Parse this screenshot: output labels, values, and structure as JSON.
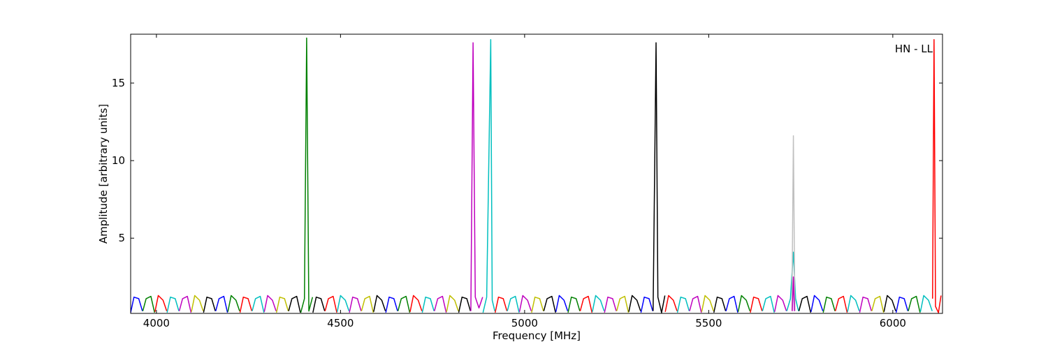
{
  "chart_data": {
    "type": "line",
    "xlabel": "Frequency [MHz]",
    "ylabel": "Amplitude [arbitrary units]",
    "annotation": "HN - LL",
    "xlim": [
      3930,
      6135
    ],
    "ylim": [
      0.15,
      18.15
    ],
    "xticks": [
      4000,
      4500,
      5000,
      5500,
      6000
    ],
    "yticks": [
      5,
      10,
      15
    ],
    "series": [
      {
        "color": "#0000ff",
        "x": [
          3930,
          3939,
          3952,
          3962
        ],
        "values": [
          0.2,
          1.2,
          1.1,
          0.3
        ]
      },
      {
        "color": "#008000",
        "x": [
          3963,
          3972,
          3985,
          3995
        ],
        "values": [
          0.3,
          1.1,
          1.25,
          0.2
        ]
      },
      {
        "color": "#ff0000",
        "x": [
          3996,
          4005,
          4018,
          4028
        ],
        "values": [
          0.25,
          1.3,
          1.0,
          0.3
        ]
      },
      {
        "color": "#00bfbf",
        "x": [
          4029,
          4038,
          4051,
          4061
        ],
        "values": [
          0.2,
          1.2,
          1.1,
          0.3
        ]
      },
      {
        "color": "#bf00bf",
        "x": [
          4062,
          4071,
          4084,
          4094
        ],
        "values": [
          0.3,
          1.1,
          1.25,
          0.2
        ]
      },
      {
        "color": "#bfbf00",
        "x": [
          4095,
          4104,
          4117,
          4127
        ],
        "values": [
          0.25,
          1.3,
          1.0,
          0.3
        ]
      },
      {
        "color": "#000000",
        "x": [
          4128,
          4137,
          4150,
          4160
        ],
        "values": [
          0.2,
          1.2,
          1.1,
          0.3
        ]
      },
      {
        "color": "#0000ff",
        "x": [
          4161,
          4170,
          4183,
          4193
        ],
        "values": [
          0.3,
          1.1,
          1.25,
          0.2
        ]
      },
      {
        "color": "#008000",
        "x": [
          4194,
          4203,
          4216,
          4226
        ],
        "values": [
          0.25,
          1.3,
          1.0,
          0.3
        ]
      },
      {
        "color": "#ff0000",
        "x": [
          4227,
          4236,
          4249,
          4259
        ],
        "values": [
          0.2,
          1.2,
          1.1,
          0.3
        ]
      },
      {
        "color": "#00bfbf",
        "x": [
          4260,
          4269,
          4282,
          4292
        ],
        "values": [
          0.3,
          1.1,
          1.25,
          0.2
        ]
      },
      {
        "color": "#bf00bf",
        "x": [
          4293,
          4302,
          4315,
          4325
        ],
        "values": [
          0.25,
          1.3,
          1.0,
          0.3
        ]
      },
      {
        "color": "#bfbf00",
        "x": [
          4326,
          4335,
          4348,
          4358
        ],
        "values": [
          0.2,
          1.2,
          1.1,
          0.3
        ]
      },
      {
        "color": "#000000",
        "x": [
          4359,
          4368,
          4381,
          4391
        ],
        "values": [
          0.3,
          1.1,
          1.25,
          0.2
        ]
      },
      {
        "color": "#008000",
        "x": [
          4392,
          4402,
          4408,
          4414,
          4424
        ],
        "values": [
          0.2,
          1.1,
          17.9,
          0.3,
          1.2
        ]
      },
      {
        "color": "#000000",
        "x": [
          4425,
          4434,
          4447,
          4457
        ],
        "values": [
          0.2,
          1.2,
          1.1,
          0.3
        ]
      },
      {
        "color": "#ff0000",
        "x": [
          4458,
          4467,
          4480,
          4490
        ],
        "values": [
          0.3,
          1.1,
          1.25,
          0.2
        ]
      },
      {
        "color": "#00bfbf",
        "x": [
          4491,
          4500,
          4513,
          4523
        ],
        "values": [
          0.25,
          1.3,
          1.0,
          0.3
        ]
      },
      {
        "color": "#bf00bf",
        "x": [
          4524,
          4533,
          4546,
          4556
        ],
        "values": [
          0.2,
          1.2,
          1.1,
          0.3
        ]
      },
      {
        "color": "#bfbf00",
        "x": [
          4557,
          4566,
          4579,
          4589
        ],
        "values": [
          0.3,
          1.1,
          1.25,
          0.2
        ]
      },
      {
        "color": "#000000",
        "x": [
          4590,
          4599,
          4612,
          4622
        ],
        "values": [
          0.25,
          1.3,
          1.0,
          0.3
        ]
      },
      {
        "color": "#0000ff",
        "x": [
          4623,
          4632,
          4645,
          4655
        ],
        "values": [
          0.2,
          1.2,
          1.1,
          0.3
        ]
      },
      {
        "color": "#008000",
        "x": [
          4656,
          4665,
          4678,
          4688
        ],
        "values": [
          0.3,
          1.1,
          1.25,
          0.2
        ]
      },
      {
        "color": "#ff0000",
        "x": [
          4689,
          4698,
          4711,
          4721
        ],
        "values": [
          0.25,
          1.3,
          1.0,
          0.3
        ]
      },
      {
        "color": "#00bfbf",
        "x": [
          4722,
          4731,
          4744,
          4754
        ],
        "values": [
          0.2,
          1.2,
          1.1,
          0.3
        ]
      },
      {
        "color": "#bf00bf",
        "x": [
          4755,
          4764,
          4777,
          4787
        ],
        "values": [
          0.3,
          1.1,
          1.25,
          0.2
        ]
      },
      {
        "color": "#bfbf00",
        "x": [
          4788,
          4797,
          4810,
          4820
        ],
        "values": [
          0.25,
          1.3,
          1.0,
          0.3
        ]
      },
      {
        "color": "#000000",
        "x": [
          4821,
          4830,
          4843,
          4853
        ],
        "values": [
          0.2,
          1.2,
          1.1,
          0.3
        ]
      },
      {
        "color": "#bf00bf",
        "x": [
          4854,
          4860,
          4866,
          4876,
          4886
        ],
        "values": [
          0.3,
          17.6,
          1.2,
          0.5,
          1.2
        ]
      },
      {
        "color": "#00bfbf",
        "x": [
          4887,
          4897,
          4908,
          4912,
          4919
        ],
        "values": [
          0.2,
          1.2,
          17.8,
          1.0,
          0.3
        ]
      },
      {
        "color": "#ff0000",
        "x": [
          4920,
          4929,
          4942,
          4952
        ],
        "values": [
          0.2,
          1.2,
          1.1,
          0.3
        ]
      },
      {
        "color": "#00bfbf",
        "x": [
          4953,
          4962,
          4975,
          4985
        ],
        "values": [
          0.3,
          1.1,
          1.25,
          0.2
        ]
      },
      {
        "color": "#bf00bf",
        "x": [
          4986,
          4995,
          5008,
          5018
        ],
        "values": [
          0.25,
          1.3,
          1.0,
          0.3
        ]
      },
      {
        "color": "#bfbf00",
        "x": [
          5019,
          5028,
          5041,
          5051
        ],
        "values": [
          0.2,
          1.2,
          1.1,
          0.3
        ]
      },
      {
        "color": "#000000",
        "x": [
          5052,
          5061,
          5074,
          5084
        ],
        "values": [
          0.3,
          1.1,
          1.25,
          0.2
        ]
      },
      {
        "color": "#0000ff",
        "x": [
          5085,
          5094,
          5107,
          5117
        ],
        "values": [
          0.25,
          1.3,
          1.0,
          0.3
        ]
      },
      {
        "color": "#008000",
        "x": [
          5118,
          5127,
          5140,
          5150
        ],
        "values": [
          0.2,
          1.2,
          1.1,
          0.3
        ]
      },
      {
        "color": "#ff0000",
        "x": [
          5151,
          5160,
          5173,
          5183
        ],
        "values": [
          0.3,
          1.1,
          1.25,
          0.2
        ]
      },
      {
        "color": "#00bfbf",
        "x": [
          5184,
          5193,
          5206,
          5216
        ],
        "values": [
          0.25,
          1.3,
          1.0,
          0.3
        ]
      },
      {
        "color": "#bf00bf",
        "x": [
          5217,
          5226,
          5239,
          5249
        ],
        "values": [
          0.2,
          1.2,
          1.1,
          0.3
        ]
      },
      {
        "color": "#bfbf00",
        "x": [
          5250,
          5259,
          5272,
          5282
        ],
        "values": [
          0.3,
          1.1,
          1.25,
          0.2
        ]
      },
      {
        "color": "#000000",
        "x": [
          5283,
          5292,
          5305,
          5315
        ],
        "values": [
          0.25,
          1.3,
          1.0,
          0.3
        ]
      },
      {
        "color": "#0000ff",
        "x": [
          5316,
          5325,
          5338,
          5348
        ],
        "values": [
          0.2,
          1.2,
          1.1,
          0.3
        ]
      },
      {
        "color": "#000000",
        "x": [
          5349,
          5357,
          5362,
          5372,
          5381
        ],
        "values": [
          0.3,
          17.6,
          1.2,
          0.2,
          1.3
        ]
      },
      {
        "color": "#ff0000",
        "x": [
          5382,
          5391,
          5404,
          5414
        ],
        "values": [
          0.25,
          1.3,
          1.0,
          0.3
        ]
      },
      {
        "color": "#00bfbf",
        "x": [
          5415,
          5424,
          5437,
          5447
        ],
        "values": [
          0.2,
          1.2,
          1.1,
          0.3
        ]
      },
      {
        "color": "#bf00bf",
        "x": [
          5448,
          5457,
          5470,
          5480
        ],
        "values": [
          0.3,
          1.1,
          1.25,
          0.2
        ]
      },
      {
        "color": "#bfbf00",
        "x": [
          5481,
          5490,
          5503,
          5513
        ],
        "values": [
          0.25,
          1.3,
          1.0,
          0.3
        ]
      },
      {
        "color": "#000000",
        "x": [
          5514,
          5523,
          5536,
          5546
        ],
        "values": [
          0.2,
          1.2,
          1.1,
          0.3
        ]
      },
      {
        "color": "#0000ff",
        "x": [
          5547,
          5556,
          5569,
          5579
        ],
        "values": [
          0.3,
          1.1,
          1.25,
          0.2
        ]
      },
      {
        "color": "#008000",
        "x": [
          5580,
          5589,
          5602,
          5612
        ],
        "values": [
          0.25,
          1.3,
          1.0,
          0.3
        ]
      },
      {
        "color": "#ff0000",
        "x": [
          5613,
          5622,
          5635,
          5645
        ],
        "values": [
          0.2,
          1.2,
          1.1,
          0.3
        ]
      },
      {
        "color": "#00bfbf",
        "x": [
          5646,
          5655,
          5668,
          5678
        ],
        "values": [
          0.3,
          1.1,
          1.25,
          0.2
        ]
      },
      {
        "color": "#bf00bf",
        "x": [
          5679,
          5688,
          5701,
          5711
        ],
        "values": [
          0.25,
          1.3,
          1.0,
          0.3
        ]
      },
      {
        "color": "#00bfbf",
        "x": [
          5712,
          5722,
          5730,
          5736,
          5744
        ],
        "values": [
          0.3,
          1.1,
          4.1,
          1.1,
          0.3
        ]
      },
      {
        "color": "#000000",
        "x": [
          5745,
          5754,
          5767,
          5777
        ],
        "values": [
          0.3,
          1.1,
          1.25,
          0.2
        ]
      },
      {
        "color": "#0000ff",
        "x": [
          5778,
          5787,
          5800,
          5810
        ],
        "values": [
          0.25,
          1.3,
          1.0,
          0.3
        ]
      },
      {
        "color": "#008000",
        "x": [
          5811,
          5820,
          5833,
          5843
        ],
        "values": [
          0.2,
          1.2,
          1.1,
          0.3
        ]
      },
      {
        "color": "#ff0000",
        "x": [
          5844,
          5853,
          5866,
          5876
        ],
        "values": [
          0.3,
          1.1,
          1.25,
          0.2
        ]
      },
      {
        "color": "#00bfbf",
        "x": [
          5877,
          5886,
          5899,
          5909
        ],
        "values": [
          0.25,
          1.3,
          1.0,
          0.3
        ]
      },
      {
        "color": "#bf00bf",
        "x": [
          5910,
          5919,
          5932,
          5942
        ],
        "values": [
          0.2,
          1.2,
          1.1,
          0.3
        ]
      },
      {
        "color": "#bfbf00",
        "x": [
          5943,
          5952,
          5965,
          5975
        ],
        "values": [
          0.3,
          1.1,
          1.25,
          0.2
        ]
      },
      {
        "color": "#000000",
        "x": [
          5976,
          5985,
          5998,
          6008
        ],
        "values": [
          0.25,
          1.3,
          1.0,
          0.3
        ]
      },
      {
        "color": "#0000ff",
        "x": [
          6009,
          6018,
          6031,
          6041
        ],
        "values": [
          0.2,
          1.2,
          1.1,
          0.3
        ]
      },
      {
        "color": "#008000",
        "x": [
          6042,
          6051,
          6064,
          6074
        ],
        "values": [
          0.3,
          1.1,
          1.25,
          0.2
        ]
      },
      {
        "color": "#00bfbf",
        "x": [
          6075,
          6084,
          6097,
          6107
        ],
        "values": [
          0.25,
          1.3,
          1.0,
          0.3
        ]
      },
      {
        "color": "#ff0000",
        "x": [
          6108,
          6112,
          6116,
          6124,
          6131
        ],
        "values": [
          1.1,
          17.8,
          0.6,
          0.2,
          1.3
        ]
      },
      {
        "color": "#c0c0c0",
        "x": [
          5726,
          5730,
          5734
        ],
        "values": [
          0.3,
          11.6,
          0.3
        ]
      },
      {
        "color": "#bf00bf",
        "x": [
          5727,
          5730,
          5733
        ],
        "values": [
          0.3,
          2.5,
          0.3
        ]
      }
    ]
  }
}
